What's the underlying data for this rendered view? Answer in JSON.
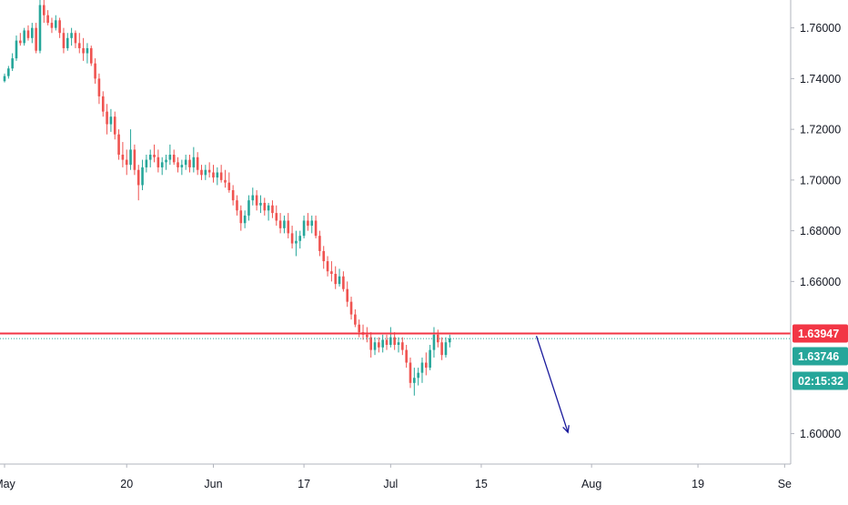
{
  "chart_data": {
    "type": "candlestick",
    "title": "",
    "xlabel": "",
    "ylabel": "",
    "ylim": [
      1.588,
      1.771
    ],
    "y_ticks": [
      "1.76000",
      "1.74000",
      "1.72000",
      "1.70000",
      "1.68000",
      "1.66000",
      "1.60000"
    ],
    "y_tick_values": [
      1.76,
      1.74,
      1.72,
      1.7,
      1.68,
      1.66,
      1.6
    ],
    "x_ticks": [
      "May",
      "20",
      "Jun",
      "17",
      "Jul",
      "15",
      "Aug",
      "19",
      "Se"
    ],
    "x_tick_index": [
      0,
      31,
      53,
      76,
      98,
      121,
      149,
      176,
      198
    ],
    "grid": false,
    "resistance": {
      "value": 1.63947,
      "label": "1.63947",
      "color": "#f23645"
    },
    "current_price": {
      "value": 1.63746,
      "label": "1.63746",
      "color": "#26a69a"
    },
    "countdown": {
      "label": "02:15:32",
      "color": "#26a69a"
    },
    "projection": {
      "from": [
        135,
        1.6385
      ],
      "to": [
        143,
        1.6005
      ],
      "color": "#1a1a9c"
    },
    "colors": {
      "up": "#26a69a",
      "down": "#ef5350"
    },
    "candles": [
      [
        1.739,
        1.742,
        1.7385,
        1.741
      ],
      [
        1.741,
        1.745,
        1.74,
        1.744
      ],
      [
        1.744,
        1.75,
        1.743,
        1.748
      ],
      [
        1.748,
        1.757,
        1.747,
        1.755
      ],
      [
        1.755,
        1.758,
        1.753,
        1.754
      ],
      [
        1.754,
        1.76,
        1.753,
        1.759
      ],
      [
        1.759,
        1.761,
        1.755,
        1.756
      ],
      [
        1.756,
        1.762,
        1.754,
        1.76
      ],
      [
        1.76,
        1.762,
        1.75,
        1.751
      ],
      [
        1.751,
        1.772,
        1.75,
        1.769
      ],
      [
        1.769,
        1.772,
        1.762,
        1.765
      ],
      [
        1.765,
        1.767,
        1.761,
        1.762
      ],
      [
        1.762,
        1.764,
        1.758,
        1.76
      ],
      [
        1.76,
        1.765,
        1.759,
        1.763
      ],
      [
        1.763,
        1.764,
        1.756,
        1.758
      ],
      [
        1.758,
        1.76,
        1.75,
        1.752
      ],
      [
        1.752,
        1.758,
        1.751,
        1.756
      ],
      [
        1.756,
        1.76,
        1.753,
        1.758
      ],
      [
        1.758,
        1.759,
        1.752,
        1.754
      ],
      [
        1.754,
        1.758,
        1.75,
        1.752
      ],
      [
        1.752,
        1.756,
        1.747,
        1.75
      ],
      [
        1.75,
        1.754,
        1.746,
        1.752
      ],
      [
        1.752,
        1.753,
        1.745,
        1.746
      ],
      [
        1.746,
        1.748,
        1.738,
        1.74
      ],
      [
        1.74,
        1.742,
        1.73,
        1.733
      ],
      [
        1.733,
        1.735,
        1.725,
        1.727
      ],
      [
        1.727,
        1.73,
        1.718,
        1.722
      ],
      [
        1.722,
        1.728,
        1.719,
        1.725
      ],
      [
        1.725,
        1.727,
        1.716,
        1.718
      ],
      [
        1.718,
        1.72,
        1.708,
        1.71
      ],
      [
        1.71,
        1.715,
        1.705,
        1.708
      ],
      [
        1.708,
        1.712,
        1.702,
        1.706
      ],
      [
        1.706,
        1.72,
        1.704,
        1.712
      ],
      [
        1.712,
        1.714,
        1.702,
        1.704
      ],
      [
        1.704,
        1.706,
        1.692,
        1.698
      ],
      [
        1.698,
        1.708,
        1.696,
        1.705
      ],
      [
        1.705,
        1.71,
        1.703,
        1.708
      ],
      [
        1.708,
        1.712,
        1.705,
        1.71
      ],
      [
        1.71,
        1.714,
        1.707,
        1.709
      ],
      [
        1.709,
        1.712,
        1.703,
        1.705
      ],
      [
        1.705,
        1.709,
        1.702,
        1.707
      ],
      [
        1.707,
        1.71,
        1.704,
        1.708
      ],
      [
        1.708,
        1.714,
        1.706,
        1.71
      ],
      [
        1.71,
        1.712,
        1.706,
        1.707
      ],
      [
        1.707,
        1.709,
        1.703,
        1.705
      ],
      [
        1.705,
        1.708,
        1.702,
        1.706
      ],
      [
        1.706,
        1.71,
        1.704,
        1.708
      ],
      [
        1.708,
        1.71,
        1.703,
        1.705
      ],
      [
        1.705,
        1.713,
        1.703,
        1.709
      ],
      [
        1.709,
        1.711,
        1.702,
        1.704
      ],
      [
        1.704,
        1.706,
        1.7,
        1.702
      ],
      [
        1.702,
        1.706,
        1.7,
        1.704
      ],
      [
        1.704,
        1.707,
        1.701,
        1.703
      ],
      [
        1.703,
        1.706,
        1.699,
        1.701
      ],
      [
        1.701,
        1.705,
        1.698,
        1.703
      ],
      [
        1.703,
        1.706,
        1.699,
        1.7
      ],
      [
        1.7,
        1.704,
        1.697,
        1.699
      ],
      [
        1.699,
        1.703,
        1.695,
        1.696
      ],
      [
        1.696,
        1.698,
        1.69,
        1.692
      ],
      [
        1.692,
        1.694,
        1.686,
        1.688
      ],
      [
        1.688,
        1.69,
        1.68,
        1.683
      ],
      [
        1.683,
        1.688,
        1.681,
        1.686
      ],
      [
        1.686,
        1.694,
        1.684,
        1.692
      ],
      [
        1.692,
        1.697,
        1.69,
        1.694
      ],
      [
        1.694,
        1.696,
        1.688,
        1.69
      ],
      [
        1.69,
        1.694,
        1.687,
        1.691
      ],
      [
        1.691,
        1.693,
        1.686,
        1.688
      ],
      [
        1.688,
        1.691,
        1.684,
        1.69
      ],
      [
        1.69,
        1.692,
        1.685,
        1.687
      ],
      [
        1.687,
        1.69,
        1.682,
        1.684
      ],
      [
        1.684,
        1.687,
        1.679,
        1.681
      ],
      [
        1.681,
        1.686,
        1.679,
        1.684
      ],
      [
        1.684,
        1.687,
        1.677,
        1.679
      ],
      [
        1.679,
        1.682,
        1.673,
        1.675
      ],
      [
        1.675,
        1.68,
        1.67,
        1.676
      ],
      [
        1.676,
        1.68,
        1.673,
        1.678
      ],
      [
        1.678,
        1.686,
        1.677,
        1.684
      ],
      [
        1.684,
        1.687,
        1.68,
        1.682
      ],
      [
        1.682,
        1.686,
        1.679,
        1.684
      ],
      [
        1.684,
        1.686,
        1.677,
        1.678
      ],
      [
        1.678,
        1.68,
        1.67,
        1.672
      ],
      [
        1.672,
        1.674,
        1.665,
        1.668
      ],
      [
        1.668,
        1.67,
        1.662,
        1.664
      ],
      [
        1.664,
        1.668,
        1.66,
        1.663
      ],
      [
        1.663,
        1.666,
        1.657,
        1.659
      ],
      [
        1.659,
        1.665,
        1.658,
        1.662
      ],
      [
        1.662,
        1.664,
        1.656,
        1.657
      ],
      [
        1.657,
        1.66,
        1.65,
        1.652
      ],
      [
        1.652,
        1.654,
        1.645,
        1.647
      ],
      [
        1.647,
        1.649,
        1.642,
        1.643
      ],
      [
        1.643,
        1.645,
        1.638,
        1.64
      ],
      [
        1.64,
        1.643,
        1.637,
        1.639
      ],
      [
        1.639,
        1.642,
        1.636,
        1.638
      ],
      [
        1.638,
        1.64,
        1.63,
        1.633
      ],
      [
        1.633,
        1.638,
        1.631,
        1.636
      ],
      [
        1.636,
        1.638,
        1.632,
        1.634
      ],
      [
        1.634,
        1.639,
        1.632,
        1.637
      ],
      [
        1.637,
        1.639,
        1.633,
        1.635
      ],
      [
        1.635,
        1.642,
        1.634,
        1.638
      ],
      [
        1.638,
        1.64,
        1.633,
        1.635
      ],
      [
        1.635,
        1.638,
        1.632,
        1.636
      ],
      [
        1.636,
        1.638,
        1.631,
        1.633
      ],
      [
        1.633,
        1.635,
        1.626,
        1.628
      ],
      [
        1.628,
        1.63,
        1.618,
        1.62
      ],
      [
        1.62,
        1.626,
        1.615,
        1.622
      ],
      [
        1.622,
        1.626,
        1.619,
        1.624
      ],
      [
        1.624,
        1.63,
        1.62,
        1.628
      ],
      [
        1.628,
        1.632,
        1.623,
        1.626
      ],
      [
        1.626,
        1.635,
        1.625,
        1.633
      ],
      [
        1.633,
        1.642,
        1.63,
        1.639
      ],
      [
        1.639,
        1.641,
        1.634,
        1.636
      ],
      [
        1.636,
        1.638,
        1.629,
        1.631
      ],
      [
        1.631,
        1.638,
        1.63,
        1.636
      ],
      [
        1.636,
        1.639,
        1.634,
        1.6375
      ]
    ]
  }
}
